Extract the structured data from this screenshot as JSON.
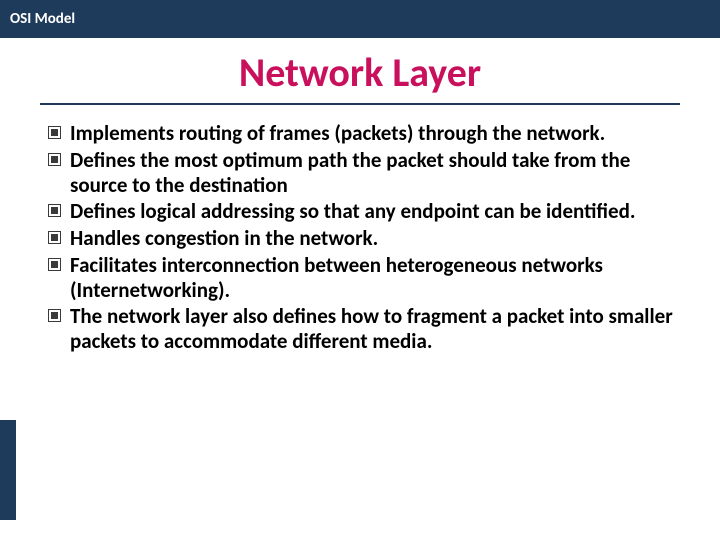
{
  "colors": {
    "header_bg": "#1f3b5b",
    "header_text": "#ffffff",
    "title_color": "#c9105c",
    "title_underline": "#1f3b5b",
    "body_text": "#000000",
    "bullet_border": "#3a3a3a",
    "bullet_fill": "#3a3a3a",
    "page_bg": "#ffffff",
    "left_stub": "#1f3b5b"
  },
  "typography": {
    "header_fontsize": 15,
    "title_fontsize": 40,
    "body_fontsize": 21,
    "font_family": "Calibri, Arial, sans-serif"
  },
  "header": {
    "label": "OSI Model"
  },
  "title": "Network Layer",
  "bullets": [
    {
      "text": "Implements routing of frames (packets) through the network.",
      "justify": false
    },
    {
      "text": "Defines the most optimum path the packet should take from the source to the destination",
      "justify": false
    },
    {
      "text": "Defines logical addressing so that any endpoint can be identified.",
      "justify": true
    },
    {
      "text": "Handles congestion in the network.",
      "justify": false
    },
    {
      "text": "Facilitates interconnection between heterogeneous networks (Internetworking).",
      "justify": false
    },
    {
      "text": "The network layer also defines how to fragment a packet into smaller packets to accommodate different media.",
      "justify": false
    }
  ]
}
